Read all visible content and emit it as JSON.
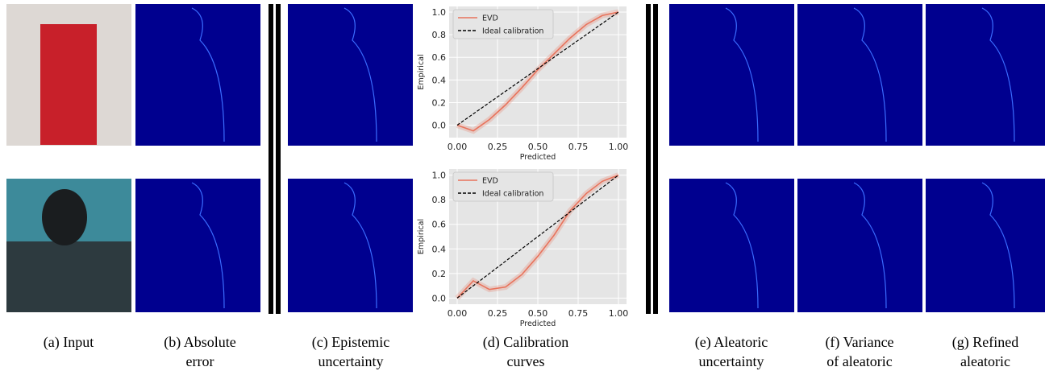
{
  "panels": [
    {
      "caption": [
        "(a) Input"
      ]
    },
    {
      "caption": [
        "(b) Absolute",
        "error"
      ]
    },
    {
      "caption": [
        "(c) Epistemic",
        "uncertainty"
      ]
    },
    {
      "caption": [
        "(d) Calibration",
        "curves"
      ]
    },
    {
      "caption": [
        "(e) Aleatoric",
        "uncertainty"
      ]
    },
    {
      "caption": [
        "(f) Variance",
        "of aleatoric"
      ]
    },
    {
      "caption": [
        "(g) Refined",
        "aleatoric"
      ]
    }
  ],
  "chart_data": [
    {
      "type": "line",
      "xlabel": "Predicted",
      "ylabel": "Empirical",
      "x": [
        0,
        0.1,
        0.2,
        0.3,
        0.4,
        0.5,
        0.6,
        0.7,
        0.8,
        0.9,
        1.0
      ],
      "series": [
        {
          "name": "EVD",
          "color": "#e8735c",
          "values": [
            0,
            -0.05,
            0.05,
            0.18,
            0.33,
            0.49,
            0.63,
            0.77,
            0.89,
            0.97,
            1.0
          ]
        },
        {
          "name": "Ideal calibration",
          "color": "#000000",
          "dashed": true,
          "values": [
            0,
            0.1,
            0.2,
            0.3,
            0.4,
            0.5,
            0.6,
            0.7,
            0.8,
            0.9,
            1.0
          ]
        }
      ],
      "xlim": [
        -0.05,
        1.05
      ],
      "ylim": [
        -0.11,
        1.05
      ],
      "xticks": [
        {
          "value": 0,
          "label": "0.00"
        },
        0.25,
        {
          "value": 0.5,
          "label": "0.50"
        },
        0.75,
        {
          "value": 1,
          "label": "1.00"
        }
      ],
      "yticks": [
        {
          "value": 0,
          "label": "0.0"
        },
        0.2,
        0.4,
        0.6,
        0.8,
        {
          "value": 1,
          "label": "1.0"
        }
      ],
      "grid": true,
      "legend": "upper left"
    },
    {
      "type": "line",
      "xlabel": "Predicted",
      "ylabel": "Empirical",
      "x": [
        0,
        0.1,
        0.2,
        0.3,
        0.4,
        0.5,
        0.6,
        0.7,
        0.8,
        0.9,
        1.0
      ],
      "series": [
        {
          "name": "EVD",
          "color": "#e8735c",
          "values": [
            0,
            0.14,
            0.07,
            0.09,
            0.19,
            0.34,
            0.51,
            0.71,
            0.85,
            0.95,
            1.0
          ]
        },
        {
          "name": "Ideal calibration",
          "color": "#000000",
          "dashed": true,
          "values": [
            0,
            0.1,
            0.2,
            0.3,
            0.4,
            0.5,
            0.6,
            0.7,
            0.8,
            0.9,
            1.0
          ]
        }
      ],
      "xlim": [
        -0.05,
        1.05
      ],
      "ylim": [
        -0.05,
        1.05
      ],
      "xticks": [
        {
          "value": 0,
          "label": "0.00"
        },
        0.25,
        {
          "value": 0.5,
          "label": "0.50"
        },
        0.75,
        {
          "value": 1,
          "label": "1.00"
        }
      ],
      "yticks": [
        {
          "value": 0,
          "label": "0.0"
        },
        0.2,
        0.4,
        0.6,
        0.8,
        {
          "value": 1,
          "label": "1.0"
        }
      ],
      "grid": true,
      "legend": "upper left"
    }
  ]
}
